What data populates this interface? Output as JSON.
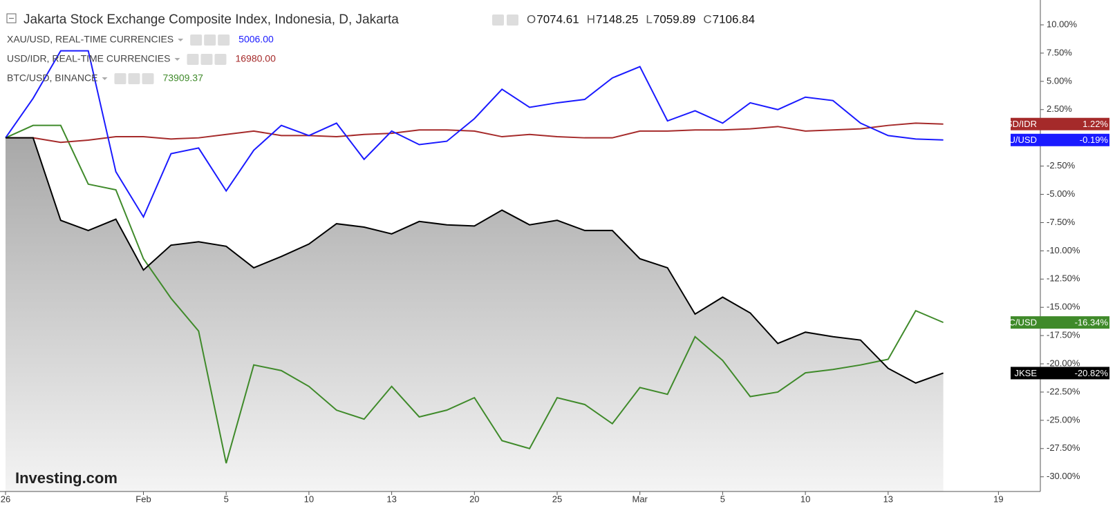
{
  "chart_data": {
    "type": "line",
    "title": "Jakarta Stock Exchange Composite Index, Indonesia, D, Jakarta",
    "ohlc": [
      {
        "label": "O",
        "value": "7074.61"
      },
      {
        "label": "H",
        "value": "7148.25"
      },
      {
        "label": "L",
        "value": "7059.89"
      },
      {
        "label": "C",
        "value": "7106.84"
      }
    ],
    "watermark": "Investing.com",
    "categories": [
      "26",
      null,
      null,
      null,
      null,
      "Feb",
      null,
      null,
      "5",
      null,
      null,
      "10",
      null,
      null,
      "13",
      null,
      null,
      "20",
      null,
      null,
      "25",
      null,
      null,
      "Mar",
      null,
      null,
      "5",
      null,
      null,
      "10",
      null,
      null,
      "13",
      null,
      null,
      null,
      "19"
    ],
    "ylim": [
      -31.3,
      12.2
    ],
    "yticks": [
      {
        "value": 10,
        "label": "10.00%"
      },
      {
        "value": 7.5,
        "label": "7.50%"
      },
      {
        "value": 5,
        "label": "5.00%"
      },
      {
        "value": 2.5,
        "label": "2.50%"
      },
      {
        "value": -2.5,
        "label": "-2.50%"
      },
      {
        "value": -5,
        "label": "-5.00%"
      },
      {
        "value": -7.5,
        "label": "-7.50%"
      },
      {
        "value": -10,
        "label": "-10.00%"
      },
      {
        "value": -12.5,
        "label": "-12.50%"
      },
      {
        "value": -15,
        "label": "-15.00%"
      },
      {
        "value": -17.5,
        "label": "-17.50%"
      },
      {
        "value": -20,
        "label": "-20.00%"
      },
      {
        "value": -22.5,
        "label": "-22.50%"
      },
      {
        "value": -25,
        "label": "-25.00%"
      },
      {
        "value": -27.5,
        "label": "-27.50%"
      },
      {
        "value": -30,
        "label": "-30.00%"
      }
    ],
    "series": [
      {
        "name": "JKSE",
        "color": "#000000",
        "area": true,
        "values": [
          0,
          0,
          -7.3,
          -8.2,
          -7.2,
          -11.7,
          -9.5,
          -9.2,
          -9.6,
          -11.5,
          -10.5,
          -9.4,
          -7.6,
          -7.9,
          -8.5,
          -7.4,
          -7.7,
          -7.8,
          -6.4,
          -7.7,
          -7.3,
          -8.2,
          -8.2,
          -10.7,
          -11.5,
          -15.6,
          -14.1,
          -15.5,
          -18.2,
          -17.2,
          -17.6,
          -17.9,
          -20.4,
          -21.7,
          -20.82,
          null,
          null
        ],
        "value_labels": [
          null,
          null,
          null,
          null,
          null,
          null,
          null,
          null,
          null,
          null,
          null,
          null,
          null,
          null,
          null,
          null,
          null,
          null,
          null,
          null,
          null,
          null,
          null,
          null,
          null,
          null,
          null,
          null,
          null,
          null,
          null,
          null,
          null,
          null,
          "-20.82%",
          null,
          null
        ]
      },
      {
        "name": "BTC/USD",
        "legend": "BTC/USD, BINANCE",
        "price": "73909.37",
        "color": "#3f8a2a",
        "values": [
          0,
          1.1,
          1.1,
          -4.1,
          -4.6,
          -10.7,
          -14.2,
          -17.1,
          -28.8,
          -20.1,
          -20.6,
          -22.0,
          -24.1,
          -24.9,
          -22.0,
          -24.7,
          -24.1,
          -23.0,
          -26.8,
          -27.5,
          -23.0,
          -23.6,
          -25.3,
          -22.1,
          -22.7,
          -17.6,
          -19.7,
          -22.9,
          -22.5,
          -20.8,
          -20.5,
          -20.1,
          -19.6,
          -15.3,
          -16.34,
          null,
          null
        ],
        "value_labels": [
          null,
          null,
          null,
          null,
          null,
          null,
          null,
          null,
          null,
          null,
          null,
          null,
          null,
          null,
          null,
          null,
          null,
          null,
          null,
          null,
          null,
          null,
          null,
          null,
          null,
          null,
          null,
          null,
          null,
          null,
          null,
          null,
          null,
          null,
          "-16.34%",
          null,
          null
        ]
      },
      {
        "name": "USD/IDR",
        "legend": "USD/IDR, REAL-TIME CURRENCIES",
        "price": "16980.00",
        "color": "#a52a2a",
        "values": [
          0,
          0,
          -0.4,
          -0.2,
          0.1,
          0.1,
          -0.1,
          0,
          0.3,
          0.6,
          0.2,
          0.2,
          0.1,
          0.3,
          0.4,
          0.7,
          0.7,
          0.6,
          0.1,
          0.3,
          0.1,
          0,
          0,
          0.6,
          0.6,
          0.7,
          0.7,
          0.8,
          1.0,
          0.6,
          0.7,
          0.8,
          1.1,
          1.3,
          1.22,
          null,
          null
        ],
        "value_labels": [
          null,
          null,
          null,
          null,
          null,
          null,
          null,
          null,
          null,
          null,
          null,
          null,
          null,
          null,
          null,
          null,
          null,
          null,
          null,
          null,
          null,
          null,
          null,
          null,
          null,
          null,
          null,
          null,
          null,
          null,
          null,
          null,
          null,
          null,
          "1.22%",
          null,
          null
        ]
      },
      {
        "name": "XAU/USD",
        "legend": "XAU/USD, REAL-TIME CURRENCIES",
        "price": "5006.00",
        "color": "#1a1aff",
        "values": [
          0,
          3.5,
          7.7,
          7.7,
          -3.0,
          -7.0,
          -1.4,
          -0.9,
          -4.7,
          -1.1,
          1.1,
          0.2,
          1.3,
          -1.9,
          0.6,
          -0.6,
          -0.3,
          1.7,
          4.3,
          2.7,
          3.1,
          3.4,
          5.3,
          6.3,
          1.5,
          2.4,
          1.3,
          3.1,
          2.5,
          3.6,
          3.3,
          1.3,
          0.2,
          -0.1,
          -0.19,
          null,
          null
        ],
        "value_labels": [
          null,
          null,
          null,
          null,
          null,
          null,
          null,
          null,
          null,
          null,
          null,
          null,
          null,
          null,
          null,
          null,
          null,
          null,
          null,
          null,
          null,
          null,
          null,
          null,
          null,
          null,
          null,
          null,
          null,
          null,
          null,
          null,
          null,
          null,
          "-0.19%",
          null,
          null
        ]
      }
    ]
  }
}
